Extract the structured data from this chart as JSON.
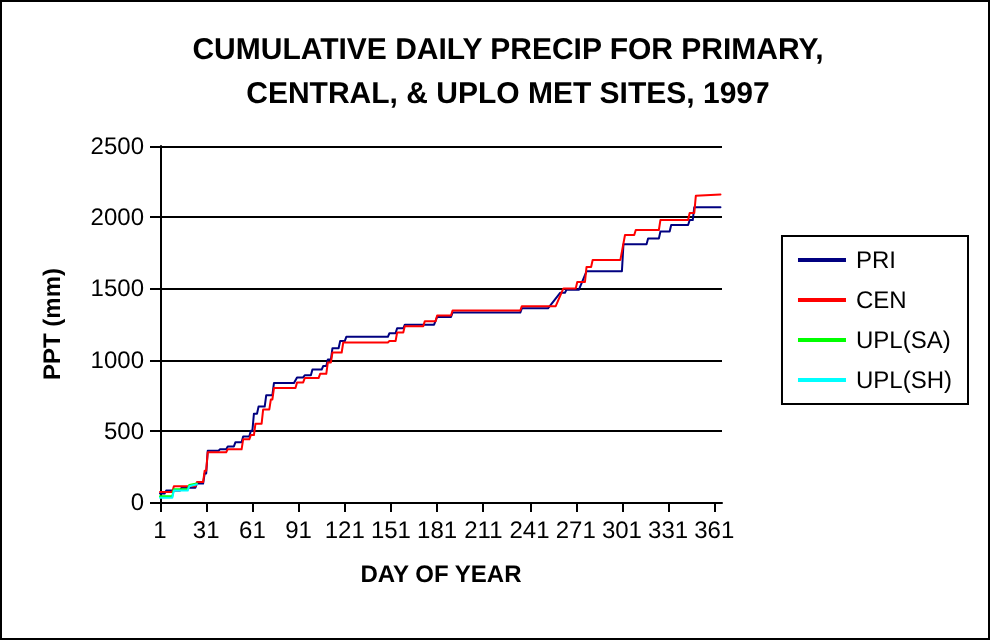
{
  "chart_data": {
    "type": "line",
    "title": "CUMULATIVE DAILY PRECIP FOR PRIMARY,\nCENTRAL, & UPLO MET SITES, 1997",
    "xlabel": "DAY OF YEAR",
    "ylabel": "PPT (mm)",
    "xlim": [
      1,
      366
    ],
    "xticks": [
      1,
      31,
      61,
      91,
      121,
      151,
      181,
      211,
      241,
      271,
      301,
      331,
      361
    ],
    "ylim": [
      0,
      2500
    ],
    "yticks": [
      0,
      500,
      1000,
      1500,
      2000,
      2500
    ],
    "grid": "y",
    "legend": "right",
    "marker": "none",
    "line_style": "solid",
    "series": [
      {
        "name": "PRI",
        "color": "#000080",
        "x": [
          1,
          4,
          5,
          14,
          15,
          24,
          25,
          29,
          30,
          31,
          32,
          39,
          40,
          44,
          45,
          49,
          50,
          54,
          55,
          59,
          60,
          61,
          62,
          64,
          65,
          69,
          70,
          74,
          75,
          88,
          90,
          94,
          95,
          99,
          100,
          106,
          107,
          109,
          110,
          112,
          113,
          117,
          118,
          121,
          122,
          149,
          150,
          154,
          155,
          159,
          160,
          179,
          181,
          190,
          191,
          235,
          236,
          253,
          261,
          264,
          265,
          273,
          278,
          301,
          302,
          317,
          318,
          325,
          326,
          332,
          333,
          344,
          345,
          347,
          348,
          365
        ],
        "values": [
          60,
          60,
          80,
          80,
          100,
          100,
          130,
          130,
          200,
          200,
          360,
          360,
          370,
          370,
          390,
          390,
          420,
          420,
          460,
          460,
          500,
          500,
          620,
          620,
          670,
          670,
          750,
          750,
          835,
          835,
          875,
          875,
          890,
          890,
          930,
          930,
          955,
          955,
          1000,
          1000,
          1080,
          1080,
          1130,
          1130,
          1160,
          1160,
          1185,
          1185,
          1220,
          1220,
          1245,
          1245,
          1300,
          1300,
          1330,
          1330,
          1360,
          1360,
          1470,
          1470,
          1490,
          1490,
          1620,
          1620,
          1810,
          1810,
          1850,
          1850,
          1900,
          1900,
          1945,
          1945,
          1980,
          1980,
          2070,
          2070
        ]
      },
      {
        "name": "CEN",
        "color": "#ff0000",
        "x": [
          1,
          9,
          10,
          24,
          25,
          29,
          30,
          31,
          32,
          44,
          45,
          54,
          55,
          59,
          60,
          62,
          63,
          67,
          68,
          72,
          73,
          74,
          75,
          89,
          90,
          94,
          95,
          104,
          105,
          109,
          110,
          112,
          113,
          119,
          120,
          149,
          150,
          154,
          155,
          159,
          160,
          172,
          173,
          180,
          181,
          190,
          191,
          235,
          236,
          258,
          263,
          271,
          272,
          277,
          278,
          281,
          282,
          300,
          303,
          309,
          310,
          325,
          326,
          344,
          345,
          348,
          349,
          365
        ],
        "values": [
          70,
          70,
          110,
          110,
          140,
          140,
          220,
          220,
          350,
          350,
          370,
          370,
          440,
          440,
          470,
          470,
          550,
          550,
          650,
          650,
          720,
          720,
          800,
          800,
          840,
          840,
          870,
          870,
          900,
          900,
          980,
          980,
          1050,
          1050,
          1120,
          1120,
          1130,
          1130,
          1190,
          1190,
          1235,
          1235,
          1270,
          1270,
          1310,
          1310,
          1345,
          1345,
          1375,
          1375,
          1500,
          1500,
          1545,
          1545,
          1650,
          1650,
          1700,
          1700,
          1875,
          1875,
          1910,
          1910,
          1980,
          1980,
          2030,
          2030,
          2150,
          2160
        ]
      },
      {
        "name": "UPL(SA)",
        "color": "#00ff00",
        "x": [
          1,
          9,
          10,
          19,
          20,
          25
        ],
        "values": [
          40,
          40,
          90,
          90,
          120,
          130
        ]
      },
      {
        "name": "UPL(SH)",
        "color": "#00ffff",
        "x": [
          1,
          9,
          10,
          19,
          20,
          25
        ],
        "values": [
          30,
          30,
          80,
          80,
          110,
          125
        ]
      }
    ]
  }
}
